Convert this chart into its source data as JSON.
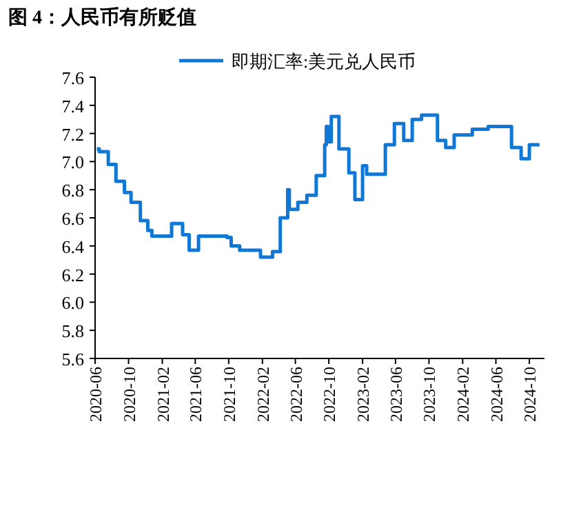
{
  "chart_data": {
    "type": "step",
    "title": "图 4：人民币有所贬值",
    "x": [
      "2020-06-07",
      "2020-06-16",
      "2020-07-19",
      "2020-08-16",
      "2020-09-16",
      "2020-10-10",
      "2020-11-13",
      "2020-12-10",
      "2020-12-25",
      "2021-03-07",
      "2021-04-16",
      "2021-05-10",
      "2021-06-13",
      "2021-09-25",
      "2021-10-10",
      "2021-11-10",
      "2022-01-25",
      "2022-03-10",
      "2022-04-07",
      "2022-05-04",
      "2022-05-10",
      "2022-06-10",
      "2022-07-13",
      "2022-08-16",
      "2022-09-16",
      "2022-09-22",
      "2022-09-28",
      "2022-10-10",
      "2022-11-07",
      "2022-12-13",
      "2023-01-04",
      "2023-02-01",
      "2023-02-16",
      "2023-04-25",
      "2023-05-28",
      "2023-07-01",
      "2023-08-01",
      "2023-09-04",
      "2023-11-01",
      "2023-12-01",
      "2024-01-01",
      "2024-03-07",
      "2024-05-04",
      "2024-07-28",
      "2024-09-01",
      "2024-10-01",
      "2024-11-07"
    ],
    "series": [
      {
        "name": "即期汇率:美元兑人民币",
        "color": "#1177d4",
        "values": [
          7.09,
          7.07,
          6.98,
          6.86,
          6.78,
          6.71,
          6.58,
          6.51,
          6.47,
          6.56,
          6.48,
          6.37,
          6.47,
          6.46,
          6.4,
          6.37,
          6.32,
          6.36,
          6.6,
          6.8,
          6.66,
          6.71,
          6.76,
          6.9,
          7.12,
          7.25,
          7.14,
          7.32,
          7.09,
          6.92,
          6.73,
          6.97,
          6.91,
          7.12,
          7.27,
          7.15,
          7.3,
          7.33,
          7.15,
          7.1,
          7.19,
          7.23,
          7.25,
          7.1,
          7.02,
          7.12,
          7.12
        ]
      }
    ],
    "xlim": [
      "2020-06-01",
      "2024-11-25"
    ],
    "xticks": [
      "2020-06",
      "2020-10",
      "2021-02",
      "2021-06",
      "2021-10",
      "2022-02",
      "2022-06",
      "2022-10",
      "2023-02",
      "2023-06",
      "2023-10",
      "2024-02",
      "2024-06",
      "2024-10"
    ],
    "ylim": [
      5.6,
      7.6
    ],
    "yticks": [
      5.6,
      5.8,
      {
        "value": 6,
        "label": "6.0"
      },
      6.2,
      6.4,
      6.6,
      6.8,
      {
        "value": 7,
        "label": "7.0"
      },
      7.2,
      7.4,
      7.6
    ],
    "legend": "top",
    "grid": false
  }
}
